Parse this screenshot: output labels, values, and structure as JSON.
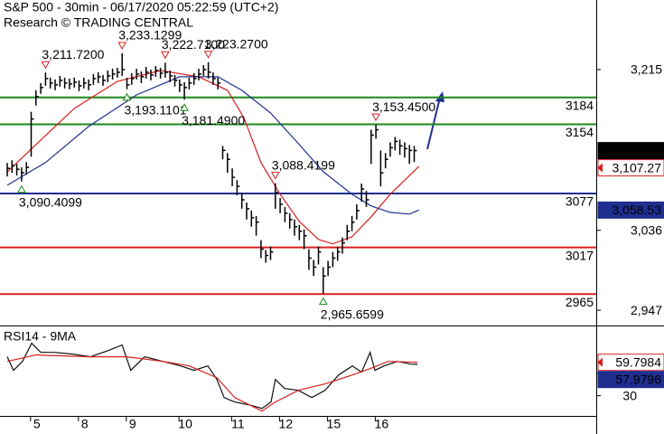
{
  "chart_data": [
    {
      "type": "ohlc",
      "title": "S&P 500 - 30min - 06/17/2020 05:22:59 (UTC+2)",
      "subtitle": "Research © TRADING CENTRAL",
      "color": "#000000",
      "categories": [
        null,
        null,
        null,
        null,
        null,
        null,
        "5",
        null,
        null,
        null,
        null,
        null,
        null,
        null,
        null,
        null,
        "8",
        null,
        null,
        null,
        null,
        null,
        null,
        null,
        null,
        null,
        "9",
        null,
        null,
        null,
        null,
        null,
        null,
        null,
        null,
        null,
        null,
        "10",
        null,
        null,
        null,
        null,
        null,
        null,
        null,
        null,
        null,
        null,
        "11",
        null,
        null,
        null,
        null,
        null,
        null,
        null,
        null,
        null,
        "12",
        null,
        null,
        null,
        null,
        null,
        null,
        null,
        null,
        null,
        "15",
        null,
        null,
        null,
        null,
        null,
        null,
        null,
        null,
        null,
        "16",
        null,
        null,
        null,
        null,
        null,
        null,
        null
      ],
      "high": [
        3111,
        3114,
        3110,
        3106,
        3112,
        3168,
        3192,
        3200,
        3211.72,
        3206,
        3204,
        3208,
        3206,
        3205,
        3206,
        3203,
        3206,
        3204,
        3210,
        3212,
        3209,
        3214,
        3216,
        3217,
        3233.13,
        3206,
        3211,
        3216,
        3213,
        3218,
        3215,
        3219,
        3217,
        3222.71,
        3214,
        3209,
        3204,
        3201,
        3206,
        3211,
        3216,
        3220,
        3223.27,
        3212,
        3206,
        3130,
        3122,
        3105,
        3092,
        3078,
        3067,
        3058,
        3052,
        3025,
        3014,
        3018,
        3088.42,
        3072,
        3062,
        3055,
        3048,
        3042,
        3037,
        3015,
        3003,
        3018,
        2995,
        3002,
        3012,
        3018,
        3028,
        3042,
        3052,
        3065,
        3088,
        3080,
        3148,
        3153.45,
        3125,
        3122,
        3134,
        3140,
        3137,
        3134,
        3131,
        3130
      ],
      "low": [
        3096,
        3100,
        3097,
        3090.41,
        3098,
        3118,
        3175,
        3188,
        3197,
        3194,
        3192,
        3196,
        3194,
        3193,
        3195,
        3191,
        3194,
        3192,
        3198,
        3200,
        3197,
        3201,
        3204,
        3206,
        3208,
        3193.11,
        3198,
        3204,
        3200,
        3205,
        3203,
        3207,
        3205,
        3206,
        3201,
        3196,
        3190,
        3181.49,
        3193,
        3198,
        3203,
        3208,
        3205,
        3198,
        3193,
        3115,
        3100,
        3085,
        3075,
        3060,
        3048,
        3040,
        3030,
        3005,
        3000,
        3003,
        3060,
        3055,
        3045,
        3038,
        3030,
        3025,
        3015,
        2992,
        2985,
        2998,
        2965.66,
        2985,
        2995,
        3002,
        3010,
        3025,
        3035,
        3048,
        3068,
        3062,
        3110,
        3138,
        3085,
        3105,
        3118,
        3125,
        3120,
        3117,
        3110,
        3112
      ],
      "close": [
        3105,
        3108,
        3104,
        3100,
        3106,
        3160,
        3185,
        3195,
        3205,
        3200,
        3198,
        3203,
        3200,
        3199,
        3201,
        3197,
        3200,
        3198,
        3205,
        3207,
        3203,
        3208,
        3210,
        3212,
        3215,
        3198,
        3205,
        3210,
        3207,
        3212,
        3209,
        3214,
        3211,
        3212,
        3208,
        3203,
        3198,
        3195,
        3200,
        3205,
        3210,
        3215,
        3212,
        3205,
        3200,
        3125,
        3115,
        3095,
        3085,
        3070,
        3060,
        3050,
        3045,
        3015,
        3008,
        3012,
        3078,
        3065,
        3055,
        3048,
        3040,
        3035,
        3030,
        3005,
        2995,
        3012,
        2985,
        2995,
        3005,
        3012,
        3022,
        3035,
        3045,
        3058,
        3082,
        3070,
        3142,
        3148,
        3100,
        3115,
        3128,
        3135,
        3130,
        3127,
        3125,
        3124.74
      ],
      "ylim": [
        2932,
        3292.5
      ],
      "yticks": [
        {
          "value": 3215,
          "label": "3,215"
        },
        {
          "value": 3036,
          "label": "3,036"
        },
        {
          "value": 2947,
          "label": "2,947"
        }
      ],
      "series": [
        {
          "color": "#d62020",
          "x": [
            0,
            6,
            14,
            23,
            32,
            40,
            46,
            49.4,
            53,
            57,
            61,
            65,
            68,
            72,
            76,
            80,
            86
          ],
          "values": [
            3101,
            3131.5,
            3171.7,
            3201.9,
            3214,
            3207,
            3191.9,
            3161.7,
            3111.4,
            3076.2,
            3046,
            3025.9,
            3020.8,
            3028.9,
            3051,
            3076.2,
            3107.27
          ]
        },
        {
          "color": "#1f2f8f",
          "x": [
            0,
            8,
            17,
            27,
            36,
            44,
            49,
            55,
            61,
            66,
            72,
            76,
            80,
            84,
            86
          ],
          "values": [
            3086.2,
            3111.4,
            3151.6,
            3186.8,
            3207,
            3207,
            3191.9,
            3166.7,
            3131.5,
            3101.3,
            3076.2,
            3063.1,
            3056,
            3054,
            3058.53
          ]
        }
      ],
      "levels": [
        {
          "value": 3184,
          "color": "#1a8a1a"
        },
        {
          "value": 3154,
          "color": "#1a8a1a"
        },
        {
          "value": 3077,
          "color": "#1f2f8f"
        },
        {
          "value": 3017,
          "color": "#d62020"
        },
        {
          "value": 2965,
          "color": "#d62020"
        }
      ],
      "annotations": [
        {
          "x": 8,
          "value": 3211.72,
          "label": "3,211.7200",
          "side": "high"
        },
        {
          "x": 24,
          "value": 3233.13,
          "label": "3,233.1299",
          "side": "high"
        },
        {
          "x": 33,
          "value": 3222.71,
          "label": "3,222.7100",
          "side": "high"
        },
        {
          "x": 42,
          "value": 3223.27,
          "label": "3,223.2700",
          "side": "high"
        },
        {
          "x": 56,
          "value": 3088.42,
          "label": "3,088.4199",
          "side": "high"
        },
        {
          "x": 77,
          "value": 3153.45,
          "label": "3,153.4500",
          "side": "high"
        },
        {
          "x": 3,
          "value": 3090.41,
          "label": "3,090.4099",
          "side": "low"
        },
        {
          "x": 25,
          "value": 3193.11,
          "label": "3,193.1101",
          "side": "low"
        },
        {
          "x": 37,
          "value": 3181.49,
          "label": "3,181.4900",
          "side": "low"
        },
        {
          "x": 66,
          "value": 2965.66,
          "label": "2,965.6599",
          "side": "low"
        }
      ],
      "tags": [
        {
          "value": 3124.74,
          "label": "3,124.74",
          "color": "#000000",
          "style": "filled"
        },
        {
          "value": 3107.27,
          "label": "3,107.27",
          "color": "#d62020",
          "style": "outline"
        },
        {
          "value": 3058.53,
          "label": "3,058.53",
          "color": "#1f2f8f",
          "style": "filled"
        }
      ]
    },
    {
      "type": "line",
      "title": "RSI14 - 9MA",
      "ylim": [
        12,
        91
      ],
      "yticks": [
        50,
        30
      ],
      "series": [
        {
          "color": "#111111",
          "x": [
            0,
            1.3,
            3.2,
            5.1,
            7,
            9.8,
            13.6,
            17.4,
            21.1,
            24,
            25.8,
            28.7,
            32.5,
            36.2,
            39,
            41.9,
            43.8,
            45.3,
            47.5,
            50.4,
            53.2,
            55.1,
            56,
            57.9,
            60.8,
            63.6,
            66.4,
            69.2,
            72.1,
            74,
            75.8,
            76.8,
            78.7,
            81.5,
            84.3,
            85.7
          ],
          "values": [
            64.7,
            52.6,
            60.6,
            76.8,
            68.7,
            68.7,
            67.1,
            64.7,
            70.3,
            75.2,
            52.6,
            64.7,
            60.6,
            56.6,
            52.6,
            56.6,
            44.5,
            28.4,
            24.4,
            22,
            18.7,
            24.4,
            44.5,
            36.5,
            34.8,
            28.4,
            34.8,
            48.5,
            56.6,
            51,
            68.7,
            52.6,
            56.6,
            60.6,
            58.2,
            57.98
          ]
        },
        {
          "color": "#d62020",
          "x": [
            0,
            6,
            17.4,
            25,
            32.5,
            38,
            43.8,
            47.5,
            53.2,
            56,
            60.8,
            66.4,
            72.1,
            75.8,
            79.6,
            85.7
          ],
          "values": [
            60.6,
            66.3,
            64.7,
            64.7,
            60.6,
            56.6,
            46.1,
            28.4,
            16.3,
            24.4,
            34.8,
            40.5,
            48.5,
            54.2,
            60.6,
            59.8
          ]
        }
      ],
      "tags": [
        {
          "value": 59.7984,
          "label": "59.7984",
          "color": "#d62020",
          "style": "outline"
        },
        {
          "value": 57.9796,
          "label": "57.9796",
          "color": "#1f2f8f",
          "style": "filled"
        }
      ]
    }
  ]
}
